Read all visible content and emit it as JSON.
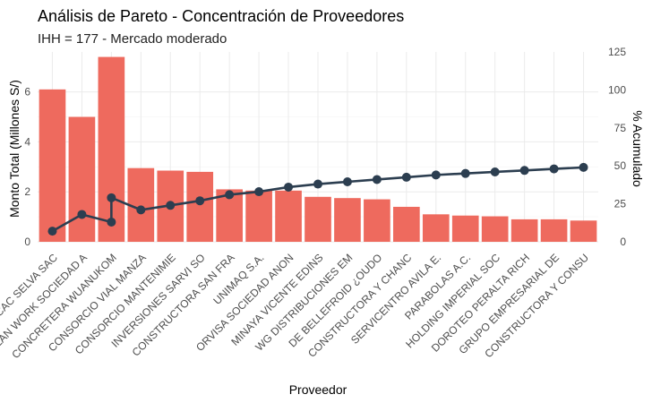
{
  "chart_data": {
    "type": "bar",
    "title": "Análisis de Pareto - Concentración de Proveedores",
    "subtitle": "IHH = 177 - Mercado moderado",
    "xlabel": "Proveedor",
    "ylabel": "Monto Total (Millones S/)",
    "y2label": "% Acumulado",
    "ylim": [
      0,
      7.6
    ],
    "y2lim": [
      0,
      125
    ],
    "y_ticks": [
      0,
      2,
      4,
      6
    ],
    "y2_ticks": [
      0,
      25,
      50,
      75,
      100,
      125
    ],
    "bar_color": "#EE6A5E",
    "line_color": "#2C3E50",
    "grid": true,
    "categories": [
      "NCAC SELVA SAC",
      "PLAN WORK SOCIEDAD A",
      "CONCRETERA WUANUKOM",
      "CONSORCIO VIAL MANZA",
      "CONSORCIO MANTENIMIE",
      "INVERSIONES SARVI SO",
      "CONSTRUCTORA SAN FRA",
      "UNIMAQ S.A.",
      "ORVISA SOCIEDAD ANON",
      "MINAYA VICENTE EDINS",
      "WG DISTRIBUCIONES EM",
      "DE BELLEFROID ¿OUDO",
      "CONSTRUCTORA Y CHANC",
      "SERVICENTRO AVILA E.",
      "PARABOLAS A.C.",
      "HOLDING IMPERIAL SOC",
      "DOROTEO PERALTA RICH",
      "GRUPO EMPRESARIAL DE",
      "CONSTRUCTORA Y CONSU"
    ],
    "series": [
      {
        "type": "bar",
        "axis": "left",
        "values": [
          6.1,
          5.0,
          7.4,
          2.95,
          2.85,
          2.8,
          2.1,
          2.05,
          2.05,
          1.8,
          1.75,
          1.7,
          1.4,
          1.1,
          1.05,
          1.02,
          0.9,
          0.9,
          0.85
        ]
      },
      {
        "type": "line",
        "axis": "right",
        "values": [
          7,
          18,
          13,
          21,
          24,
          27,
          31,
          33,
          36,
          38,
          39.5,
          41,
          42.5,
          44,
          45,
          46,
          47,
          48,
          49
        ]
      }
    ],
    "line_kink": {
      "index": 2,
      "value": 29
    }
  }
}
